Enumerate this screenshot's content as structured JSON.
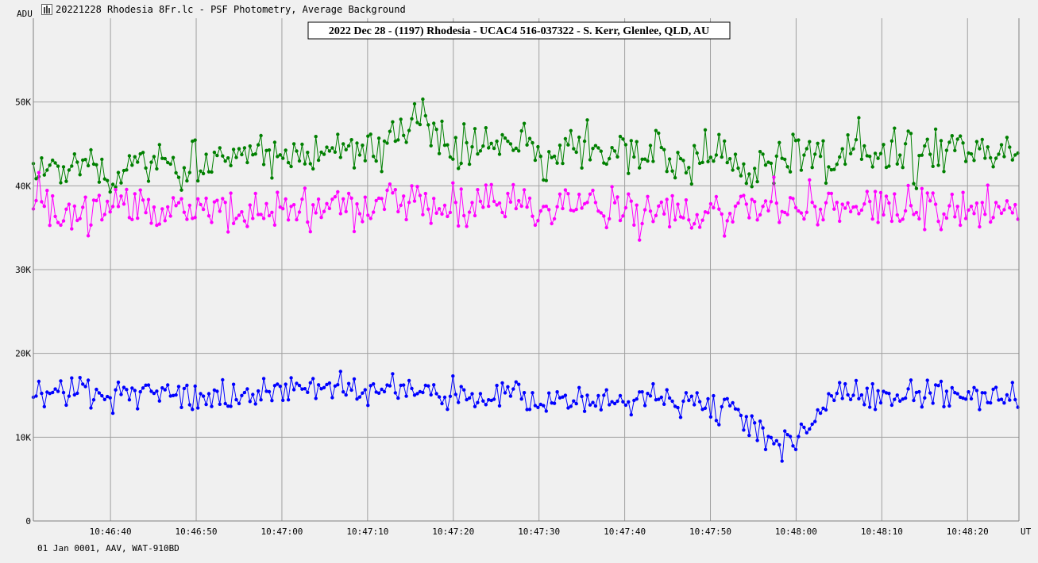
{
  "window": {
    "title": "20221228 Rhodesia 8Fr.lc - PSF Photometry, Average Background"
  },
  "footer": {
    "text": "01 Jan 0001, AAV, WAT-910BD"
  },
  "chart_data": {
    "type": "line",
    "title": "2022 Dec 28 - (1197) Rhodesia - UCAC4 516-037322 - S. Kerr, Glenlee, QLD, AU",
    "xlabel": "UT",
    "ylabel": "ADU",
    "xlim": [
      "10:46:31",
      "10:48:26"
    ],
    "ylim": [
      0,
      60000
    ],
    "x_ticks": [
      "10:46:40",
      "10:46:50",
      "10:47:00",
      "10:47:10",
      "10:47:20",
      "10:47:30",
      "10:47:40",
      "10:47:50",
      "10:48:00",
      "10:48:10",
      "10:48:20"
    ],
    "y_ticks": [
      {
        "value": 0,
        "label": "0"
      },
      {
        "value": 10000,
        "label": "10K"
      },
      {
        "value": 20000,
        "label": "20K"
      },
      {
        "value": 30000,
        "label": "30K"
      },
      {
        "value": 40000,
        "label": "40K"
      },
      {
        "value": 50000,
        "label": "50K"
      }
    ],
    "grid": true,
    "point_interval_s": 0.32,
    "series": [
      {
        "color": "#008000",
        "profile": [
          [
            0,
            42000
          ],
          [
            10,
            41500
          ],
          [
            20,
            42500
          ],
          [
            30,
            41800
          ],
          [
            40,
            43500
          ],
          [
            50,
            42000
          ],
          [
            60,
            43000
          ],
          [
            70,
            42500
          ],
          [
            80,
            44000
          ],
          [
            90,
            43000
          ],
          [
            100,
            43500
          ],
          [
            110,
            44500
          ],
          [
            120,
            44000
          ],
          [
            130,
            46000
          ],
          [
            140,
            47000
          ],
          [
            150,
            45000
          ],
          [
            160,
            44500
          ],
          [
            170,
            45500
          ],
          [
            180,
            44000
          ],
          [
            190,
            43500
          ],
          [
            200,
            44000
          ],
          [
            210,
            44500
          ],
          [
            220,
            43800
          ],
          [
            230,
            42800
          ],
          [
            240,
            43500
          ],
          [
            250,
            44000
          ],
          [
            260,
            42500
          ],
          [
            270,
            43500
          ],
          [
            280,
            44000
          ],
          [
            290,
            43500
          ],
          [
            300,
            44500
          ],
          [
            310,
            44000
          ],
          [
            320,
            43000
          ],
          [
            330,
            44000
          ],
          [
            340,
            44500
          ],
          [
            350,
            43500
          ],
          [
            359,
            44500
          ]
        ],
        "noise": 2900
      },
      {
        "color": "#ff00ff",
        "profile": [
          [
            0,
            39000
          ],
          [
            10,
            36500
          ],
          [
            20,
            37000
          ],
          [
            30,
            37500
          ],
          [
            40,
            36500
          ],
          [
            50,
            37500
          ],
          [
            60,
            37000
          ],
          [
            70,
            37500
          ],
          [
            80,
            37000
          ],
          [
            90,
            37500
          ],
          [
            100,
            37000
          ],
          [
            110,
            37200
          ],
          [
            120,
            37500
          ],
          [
            130,
            38500
          ],
          [
            140,
            37500
          ],
          [
            150,
            37500
          ],
          [
            160,
            38000
          ],
          [
            170,
            38500
          ],
          [
            180,
            37800
          ],
          [
            190,
            37500
          ],
          [
            200,
            38000
          ],
          [
            210,
            37700
          ],
          [
            220,
            37000
          ],
          [
            230,
            37500
          ],
          [
            240,
            37200
          ],
          [
            250,
            37000
          ],
          [
            260,
            37500
          ],
          [
            270,
            37800
          ],
          [
            280,
            37300
          ],
          [
            290,
            36800
          ],
          [
            300,
            37500
          ],
          [
            310,
            37200
          ],
          [
            320,
            36800
          ],
          [
            330,
            37000
          ],
          [
            340,
            37300
          ],
          [
            350,
            37500
          ],
          [
            359,
            37000
          ]
        ],
        "noise": 2500
      },
      {
        "color": "#0000ff",
        "profile": [
          [
            0,
            15500
          ],
          [
            10,
            15500
          ],
          [
            20,
            15000
          ],
          [
            30,
            15000
          ],
          [
            40,
            15500
          ],
          [
            50,
            14800
          ],
          [
            60,
            15200
          ],
          [
            70,
            14600
          ],
          [
            80,
            14800
          ],
          [
            90,
            16000
          ],
          [
            100,
            16500
          ],
          [
            110,
            16000
          ],
          [
            120,
            15200
          ],
          [
            130,
            15500
          ],
          [
            140,
            15600
          ],
          [
            150,
            15000
          ],
          [
            160,
            14800
          ],
          [
            170,
            15000
          ],
          [
            180,
            14600
          ],
          [
            190,
            14500
          ],
          [
            200,
            14200
          ],
          [
            210,
            14600
          ],
          [
            220,
            14800
          ],
          [
            230,
            14500
          ],
          [
            240,
            14200
          ],
          [
            255,
            13000
          ],
          [
            262,
            11500
          ],
          [
            268,
            9800
          ],
          [
            273,
            9200
          ],
          [
            278,
            9600
          ],
          [
            283,
            11500
          ],
          [
            288,
            13500
          ],
          [
            293,
            15500
          ],
          [
            300,
            15600
          ],
          [
            310,
            15200
          ],
          [
            320,
            15000
          ],
          [
            330,
            15200
          ],
          [
            340,
            15000
          ],
          [
            350,
            15200
          ],
          [
            359,
            15000
          ]
        ],
        "noise": 1700
      }
    ]
  }
}
